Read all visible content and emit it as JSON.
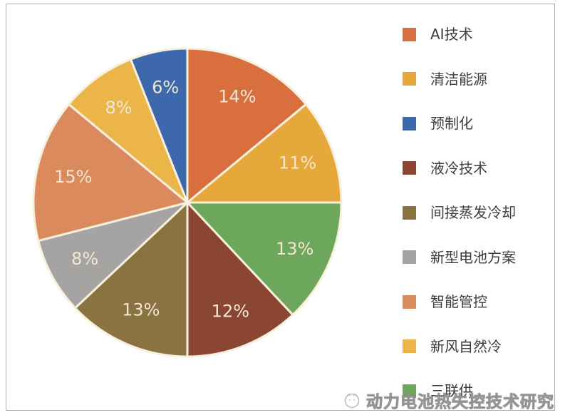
{
  "canvas": {
    "background": "#ffffff",
    "frame_border_color": "#ababab"
  },
  "chart_data": {
    "type": "pie",
    "title": "",
    "legend_position": "right",
    "direction": "clockwise",
    "start_angle_deg": 0,
    "grid": false,
    "slices": [
      {
        "label": "AI技术",
        "value": 14,
        "display": "14%",
        "color": "#D96E3E"
      },
      {
        "label": "清洁能源",
        "value": 11,
        "display": "11%",
        "color": "#E7A83B"
      },
      {
        "label": "三联供",
        "value": 13,
        "display": "13%",
        "color": "#6CA75B"
      },
      {
        "label": "液冷技术",
        "value": 12,
        "display": "12%",
        "color": "#8B4533"
      },
      {
        "label": "间接蒸发冷却",
        "value": 13,
        "display": "13%",
        "color": "#8A7340"
      },
      {
        "label": "新型电池方案",
        "value": 8,
        "display": "8%",
        "color": "#A5A4A3"
      },
      {
        "label": "智能管控",
        "value": 15,
        "display": "15%",
        "color": "#DB8A5E"
      },
      {
        "label": "新风自然冷",
        "value": 8,
        "display": "8%",
        "color": "#EBB54A"
      },
      {
        "label": "预制化",
        "value": 6,
        "display": "6%",
        "color": "#3D68AC"
      }
    ],
    "legend_order": [
      "AI技术",
      "清洁能源",
      "预制化",
      "液冷技术",
      "间接蒸发冷却",
      "新型电池方案",
      "智能管控",
      "新风自然冷",
      "三联供"
    ],
    "label_color": "#F1E7D2",
    "separator_color": "#F7F0DC"
  },
  "watermark": {
    "text": "动力电池热失控技术研究"
  }
}
